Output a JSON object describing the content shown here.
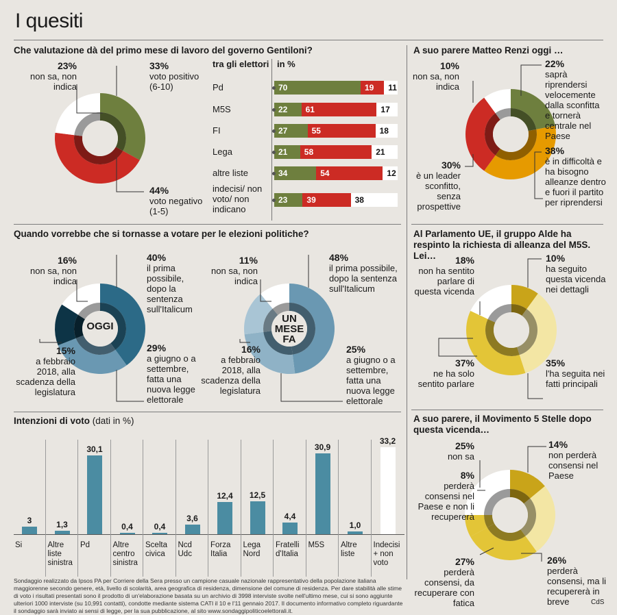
{
  "title": "I quesiti",
  "colors": {
    "olive": "#6e7f3e",
    "red": "#cc2b24",
    "white": "#ffffff",
    "orange": "#e69a00",
    "teal1": "#2c6a87",
    "teal2": "#6a98b2",
    "teal3": "#a9c5d5",
    "dark": "#0d3446",
    "gold": "#c9a419",
    "yellow": "#e3c537",
    "paleyellow": "#f3e6a4",
    "bar": "#4b8ca2"
  },
  "gov": {
    "question": "Che valutazione dà del primo mese di lavoro del governo Gentiloni?",
    "slices": [
      {
        "pct": "33%",
        "label": "voto positivo (6-10)",
        "value": 33
      },
      {
        "pct": "44%",
        "label": "voto negativo (1-5)",
        "value": 44
      },
      {
        "pct": "23%",
        "label": "non sa, non indica",
        "value": 23
      }
    ],
    "table_header_left": "tra gli elettori",
    "table_header_right": "in %",
    "rows": [
      {
        "label": "Pd",
        "pos": "70",
        "neg": "19",
        "nd": "11",
        "v": [
          70,
          19,
          11
        ]
      },
      {
        "label": "M5S",
        "pos": "22",
        "neg": "61",
        "nd": "17",
        "v": [
          22,
          61,
          17
        ]
      },
      {
        "label": "FI",
        "pos": "27",
        "neg": "55",
        "nd": "18",
        "v": [
          27,
          55,
          18
        ]
      },
      {
        "label": "Lega",
        "pos": "21",
        "neg": "58",
        "nd": "21",
        "v": [
          21,
          58,
          21
        ]
      },
      {
        "label": "altre liste",
        "pos": "34",
        "neg": "54",
        "nd": "12",
        "v": [
          34,
          54,
          12
        ]
      },
      {
        "label": "indecisi/ non voto/ non indicano",
        "pos": "23",
        "neg": "39",
        "nd": "38",
        "v": [
          23,
          39,
          38
        ]
      }
    ]
  },
  "renzi": {
    "question": "A suo parere Matteo Renzi oggi …",
    "slices": [
      {
        "pct": "22%",
        "label": "saprà riprendersi velocemente dalla sconfitta e tornerà centrale nel Paese",
        "value": 22
      },
      {
        "pct": "38%",
        "label": "è in difficoltà e ha bisogno alleanze dentro e fuori il partito per riprendersi",
        "value": 38
      },
      {
        "pct": "30%",
        "label": "è un leader sconfitto, senza prospettive",
        "value": 30
      },
      {
        "pct": "10%",
        "label": "non sa, non indica",
        "value": 10
      }
    ]
  },
  "vote": {
    "question": "Quando vorrebbe che si tornasse a votare per le elezioni politiche?",
    "oggi": {
      "center": "OGGI",
      "slices": [
        {
          "pct": "40%",
          "label": "il prima possibile, dopo la sentenza sull'Italicum",
          "value": 40
        },
        {
          "pct": "29%",
          "label": "a giugno o a settembre, fatta una nuova legge elettorale",
          "value": 29
        },
        {
          "pct": "15%",
          "label": "a febbraio 2018, alla scadenza della legislatura",
          "value": 15
        },
        {
          "pct": "16%",
          "label": "non sa, non indica",
          "value": 16
        }
      ]
    },
    "mese": {
      "center": "UN MESE FA",
      "slices": [
        {
          "pct": "48%",
          "label": "il prima possibile, dopo la sentenza sull'Italicum",
          "value": 48
        },
        {
          "pct": "25%",
          "label": "a giugno o a settembre, fatta una nuova legge elettorale",
          "value": 25
        },
        {
          "pct": "16%",
          "label": "a febbraio 2018, alla scadenza della legislatura",
          "value": 16
        },
        {
          "pct": "11%",
          "label": "non sa, non indica",
          "value": 11
        }
      ]
    }
  },
  "alde": {
    "question": "Al Parlamento UE, il gruppo Alde ha respinto la richiesta di alleanza del M5S. Lei…",
    "slices": [
      {
        "pct": "10%",
        "label": "ha seguito questa vicenda nei dettagli",
        "value": 10
      },
      {
        "pct": "35%",
        "label": "l'ha seguita nei fatti principali",
        "value": 35
      },
      {
        "pct": "37%",
        "label": "ne ha solo sentito parlare",
        "value": 37
      },
      {
        "pct": "18%",
        "label": "non ha sentito parlare di questa vicenda",
        "value": 18
      }
    ]
  },
  "m5s": {
    "question": "A suo parere, il Movimento 5 Stelle dopo questa vicenda…",
    "slices": [
      {
        "pct": "14%",
        "label": "non perderà consensi nel Paese",
        "value": 14
      },
      {
        "pct": "26%",
        "label": "perderà consensi, ma li recupererà in breve",
        "value": 26
      },
      {
        "pct": "27%",
        "label": "perderà consensi, da recuperare con fatica",
        "value": 27
      },
      {
        "pct": "8%",
        "label": "perderà consensi nel Paese e non li recupererà",
        "value": 8
      },
      {
        "pct": "25%",
        "label": "non sa",
        "value": 25
      }
    ]
  },
  "chart_data": {
    "type": "bar",
    "title": "Intenzioni di voto",
    "subtitle": "(dati in %)",
    "categories": [
      "Si",
      "Altre liste sinistra",
      "Pd",
      "Altre centro sinistra",
      "Scelta civica",
      "Ncd Udc",
      "Forza Italia",
      "Lega Nord",
      "Fratelli d'Italia",
      "M5S",
      "Altre liste",
      "Indecisi + non voto"
    ],
    "value_labels": [
      "3",
      "1,3",
      "30,1",
      "0,4",
      "0,4",
      "3,6",
      "12,4",
      "12,5",
      "4,4",
      "30,9",
      "1,0",
      "33,2"
    ],
    "values": [
      3,
      1.3,
      30.1,
      0.4,
      0.4,
      3.6,
      12.4,
      12.5,
      4.4,
      30.9,
      1.0,
      33.2
    ]
  },
  "footnote": "Sondaggio realizzato da Ipsos PA per Corriere della Sera presso un campione casuale nazionale rappresentativo della popolazione italiana maggiorenne secondo genere, età, livello di scolarità, area geografica di residenza, dimensione del comune di residenza. Per dare stabilità alle stime di voto i risultati presentati sono il prodotto di un'elaborazione basata su un archivio di 3998 interviste svolte nell'ultimo mese, cui si sono aggiunte ulteriori 1000 interviste (su 10,991 contatti), condotte mediante sistema CATI il 10 e l'11 gennaio 2017. Il documento informativo completo riguardante il sondaggio sarà inviato ai sensi di legge, per la sua pubblicazione, al sito www.sondaggipoliticoelettorali.it.",
  "credit": "CdS"
}
